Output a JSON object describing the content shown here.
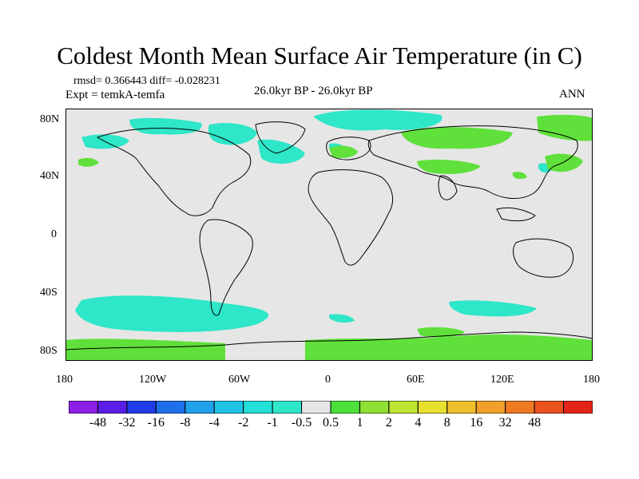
{
  "title": "Coldest Month Mean Surface Air Temperature (in C)",
  "stats": "rmsd= 0.366443 diff= -0.028231",
  "expt": "Expt = temkA-temfa",
  "period": "26.0kyr BP - 26.0kyr BP",
  "season": "ANN",
  "colors": {
    "background_field": "#e6e6e6",
    "coastline": "#000000",
    "cyan_anomaly": "#2ee6c8",
    "green_anomaly": "#5fe03a",
    "lime_anomaly": "#9be432"
  },
  "axes": {
    "x_ticks": [
      "180",
      "120W",
      "60W",
      "0",
      "60E",
      "120E",
      "180"
    ],
    "y_ticks": [
      "80N",
      "40N",
      "0",
      "40S",
      "80S"
    ]
  },
  "colorbar": {
    "colors": [
      "#8c1fe8",
      "#5a1ee6",
      "#1f3ce8",
      "#1d6fea",
      "#1ea0ea",
      "#1ec4e6",
      "#22e0d8",
      "#2ee6c8",
      "#e6e6e6",
      "#4de03a",
      "#8fe032",
      "#bce430",
      "#e8e030",
      "#f0c02c",
      "#f0a028",
      "#ee7a22",
      "#ea521e",
      "#e2241a"
    ],
    "labels": [
      "-48",
      "-32",
      "-16",
      "-8",
      "-4",
      "-2",
      "-1",
      "-0.5",
      "0.5",
      "1",
      "2",
      "4",
      "8",
      "16",
      "32",
      "48"
    ]
  }
}
